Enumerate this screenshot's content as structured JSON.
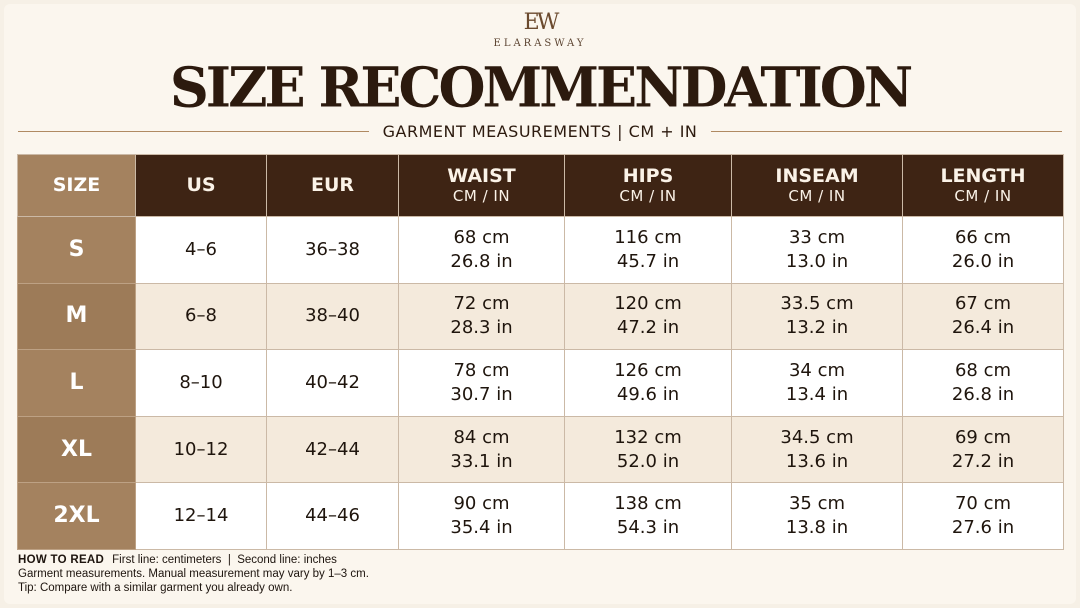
{
  "brand": {
    "monogram": "EW",
    "name": "ELARASWAY"
  },
  "title": "SIZE RECOMMENDATION",
  "subtitle": "GARMENT MEASUREMENTS | CM + IN",
  "table": {
    "headers": [
      {
        "label": "SIZE",
        "unit": ""
      },
      {
        "label": "US",
        "unit": ""
      },
      {
        "label": "EUR",
        "unit": ""
      },
      {
        "label": "WAIST",
        "unit": "CM / IN"
      },
      {
        "label": "HIPS",
        "unit": "CM / IN"
      },
      {
        "label": "INSEAM",
        "unit": "CM / IN"
      },
      {
        "label": "LENGTH",
        "unit": "CM / IN"
      }
    ],
    "rows": [
      {
        "size": "S",
        "us": "4–6",
        "eur": "36–38",
        "waist": [
          "68 cm",
          "26.8 in"
        ],
        "hips": [
          "116 cm",
          "45.7 in"
        ],
        "inseam": [
          "33 cm",
          "13.0 in"
        ],
        "length": [
          "66 cm",
          "26.0 in"
        ]
      },
      {
        "size": "M",
        "us": "6–8",
        "eur": "38–40",
        "waist": [
          "72 cm",
          "28.3 in"
        ],
        "hips": [
          "120 cm",
          "47.2 in"
        ],
        "inseam": [
          "33.5 cm",
          "13.2 in"
        ],
        "length": [
          "67 cm",
          "26.4 in"
        ]
      },
      {
        "size": "L",
        "us": "8–10",
        "eur": "40–42",
        "waist": [
          "78 cm",
          "30.7 in"
        ],
        "hips": [
          "126 cm",
          "49.6 in"
        ],
        "inseam": [
          "34 cm",
          "13.4 in"
        ],
        "length": [
          "68 cm",
          "26.8 in"
        ]
      },
      {
        "size": "XL",
        "us": "10–12",
        "eur": "42–44",
        "waist": [
          "84 cm",
          "33.1 in"
        ],
        "hips": [
          "132 cm",
          "52.0 in"
        ],
        "inseam": [
          "34.5 cm",
          "13.6 in"
        ],
        "length": [
          "69 cm",
          "27.2 in"
        ]
      },
      {
        "size": "2XL",
        "us": "12–14",
        "eur": "44–46",
        "waist": [
          "90 cm",
          "35.4 in"
        ],
        "hips": [
          "138 cm",
          "54.3 in"
        ],
        "inseam": [
          "35 cm",
          "13.8 in"
        ],
        "length": [
          "70 cm",
          "27.6 in"
        ]
      }
    ]
  },
  "notes": {
    "how_to_read_label": "HOW TO READ",
    "how_to_read_text": "First line: centimeters  |  Second line: inches",
    "line2": "Garment measurements. Manual measurement may vary by 1–3 cm.",
    "line3": "Tip: Compare with a similar garment you already own."
  },
  "colors": {
    "header_dark": "#3e2414",
    "size_column": "#a4825f",
    "row_alt": "#f4eadc",
    "background": "#fbf6ee"
  }
}
